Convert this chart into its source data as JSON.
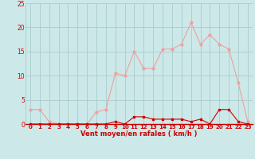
{
  "hours": [
    0,
    1,
    2,
    3,
    4,
    5,
    6,
    7,
    8,
    9,
    10,
    11,
    12,
    13,
    14,
    15,
    16,
    17,
    18,
    19,
    20,
    21,
    22,
    23
  ],
  "wind_avg": [
    0,
    0,
    0,
    0,
    0,
    0,
    0,
    0,
    0,
    0.5,
    0,
    1.5,
    1.5,
    1,
    1,
    1,
    1,
    0.5,
    1,
    0,
    3,
    3,
    0.5,
    0
  ],
  "wind_gust": [
    3,
    3,
    0.5,
    0,
    0,
    0,
    0,
    2.5,
    3,
    10.5,
    10,
    15,
    11.5,
    11.5,
    15.5,
    15.5,
    16.5,
    21,
    16.5,
    18.5,
    16.5,
    15.5,
    8.5,
    0.5
  ],
  "avg_color": "#cc0000",
  "gust_color": "#f0a0a0",
  "bg_color": "#cce8e8",
  "grid_color": "#aacccc",
  "title": "Vent moyen/en rafales ( km/h )",
  "ylim": [
    0,
    25
  ],
  "yticks": [
    0,
    5,
    10,
    15,
    20,
    25
  ],
  "xticks": [
    0,
    1,
    2,
    3,
    4,
    5,
    6,
    7,
    8,
    9,
    10,
    11,
    12,
    13,
    14,
    15,
    16,
    17,
    18,
    19,
    20,
    21,
    22,
    23
  ],
  "title_fontsize": 6.0,
  "tick_fontsize_x": 5.0,
  "tick_fontsize_y": 5.5
}
